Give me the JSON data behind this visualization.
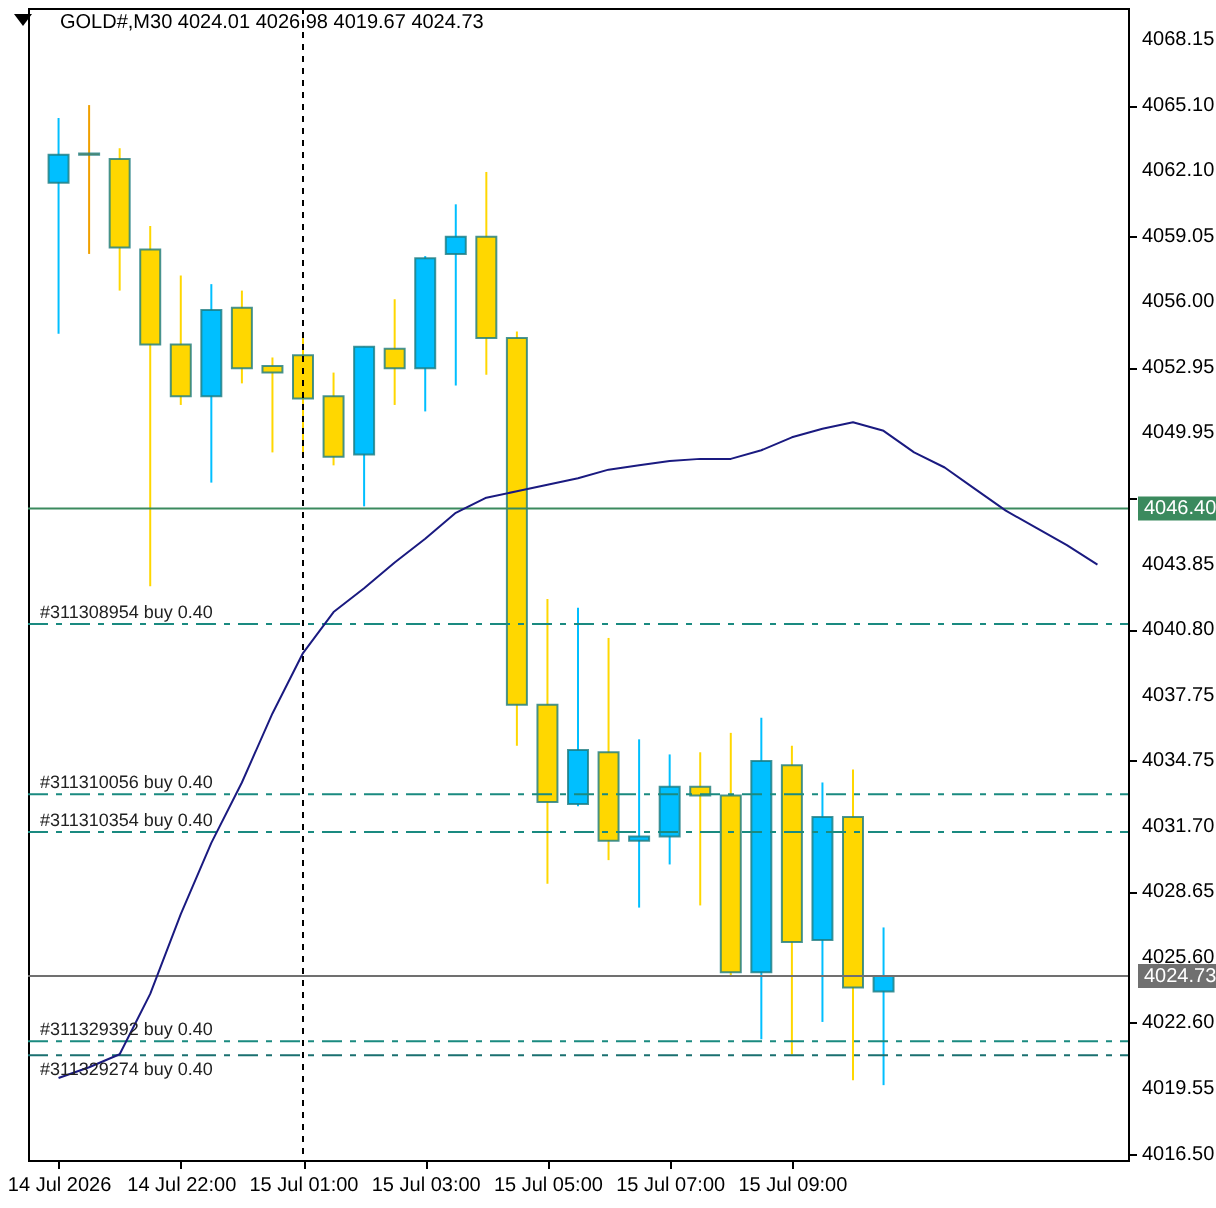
{
  "chart_data": {
    "type": "candlestick",
    "title": "GOLD#,M30 4024.01 4026.98 4019.67 4024.73",
    "categories": [
      "14 Jul 2026",
      null,
      null,
      null,
      "14 Jul 22:00",
      null,
      null,
      null,
      "15 Jul 01:00",
      null,
      null,
      null,
      "15 Jul 03:00",
      null,
      null,
      null,
      "15 Jul 05:00",
      null,
      null,
      null,
      "15 Jul 07:00",
      null,
      null,
      null,
      "15 Jul 09:00",
      null,
      null,
      null,
      null,
      null,
      null,
      null,
      null,
      null,
      null
    ],
    "ohlc": [
      [
        4061.5,
        4064.5,
        4054.5,
        4062.8
      ],
      [
        4062.85,
        4065.1,
        4058.2,
        4062.8
      ],
      [
        4062.6,
        4063.1,
        4056.5,
        4058.5
      ],
      [
        4058.4,
        4059.5,
        4042.8,
        4054.0
      ],
      [
        4054.0,
        4057.2,
        4051.2,
        4051.6
      ],
      [
        4051.6,
        4056.8,
        4047.6,
        4055.6
      ],
      [
        4055.7,
        4056.5,
        4052.2,
        4052.9
      ],
      [
        4053.0,
        4053.4,
        4049.0,
        4052.7
      ],
      [
        4053.5,
        4054.4,
        4048.9,
        4051.5
      ],
      [
        4051.6,
        4052.7,
        4048.4,
        4048.8
      ],
      [
        4048.9,
        4053.9,
        4046.5,
        4053.9
      ],
      [
        4053.8,
        4056.1,
        4051.2,
        4052.9
      ],
      [
        4052.9,
        4058.1,
        4050.9,
        4058.0
      ],
      [
        4058.2,
        4060.5,
        4052.1,
        4059.0
      ],
      [
        4059.0,
        4062.0,
        4052.6,
        4054.3
      ],
      [
        4054.3,
        4054.6,
        4035.4,
        4037.3
      ],
      [
        4037.3,
        4042.2,
        4029.0,
        4032.8
      ],
      [
        4032.7,
        4041.8,
        4032.6,
        4035.2
      ],
      [
        4035.1,
        4040.4,
        4030.1,
        4031.0
      ],
      [
        4031.0,
        4035.7,
        4027.9,
        4031.2
      ],
      [
        4031.2,
        4035.0,
        4029.9,
        4033.5
      ],
      [
        4033.5,
        4035.1,
        4028.0,
        4033.1
      ],
      [
        4033.1,
        4036.0,
        4024.7,
        4024.9
      ],
      [
        4024.9,
        4036.7,
        4021.8,
        4034.7
      ],
      [
        4034.5,
        4035.4,
        4021.1,
        4026.3
      ],
      [
        4026.4,
        4033.7,
        4022.6,
        4032.1
      ],
      [
        4032.1,
        4034.3,
        4019.9,
        4024.2
      ],
      [
        4024.01,
        4026.98,
        4019.67,
        4024.73
      ],
      null,
      null,
      null,
      null,
      null,
      null,
      null
    ],
    "colors": [
      "#00bfff",
      "#f0a000",
      "#ffd700",
      "#ffd700",
      "#ffd700",
      "#00bfff",
      "#ffd700",
      "#ffd700",
      "#ffd700",
      "#ffd700",
      "#00bfff",
      "#ffd700",
      "#00bfff",
      "#00bfff",
      "#ffd700",
      "#ffd700",
      "#ffd700",
      "#00bfff",
      "#ffd700",
      "#00bfff",
      "#00bfff",
      "#ffd700",
      "#ffd700",
      "#00bfff",
      "#ffd700",
      "#00bfff",
      "#ffd700",
      "#00bfff",
      null,
      null,
      null,
      null,
      null,
      null,
      null
    ],
    "series": [
      {
        "type": "line",
        "color": "#1a1a80",
        "values": [
          4020.0,
          4020.5,
          4021.1,
          4023.9,
          4027.6,
          4030.9,
          4033.7,
          4036.9,
          4039.7,
          4041.6,
          4042.7,
          4043.9,
          4045.0,
          4046.2,
          4046.9,
          4047.2,
          4047.5,
          4047.8,
          4048.2,
          4048.4,
          4048.6,
          4048.7,
          4048.7,
          4049.1,
          4049.7,
          4050.1,
          4050.4,
          4050.0,
          4049.0,
          4048.3,
          4047.3,
          4046.3,
          4045.5,
          4044.7,
          4043.8
        ]
      }
    ],
    "ylim": [
      4016.2,
      4069.6
    ],
    "yticks": [
      4068.15,
      {
        "value": 4065.1,
        "label": "4065.10"
      },
      {
        "value": 4062.1,
        "label": "4062.10"
      },
      4059.05,
      {
        "value": 4056,
        "label": "4056.00"
      },
      4052.95,
      4049.95,
      {
        "value": 4046.9,
        "label": null
      },
      4043.85,
      {
        "value": 4040.8,
        "label": "4040.80"
      },
      4037.75,
      4034.75,
      {
        "value": 4031.7,
        "label": "4031.70"
      },
      4028.65,
      {
        "value": 4025.6,
        "label": "4025.60"
      },
      {
        "value": 4022.6,
        "label": "4022.60"
      },
      4019.55,
      {
        "value": 4016.5,
        "label": "4016.50"
      }
    ],
    "ref_lines": [
      {
        "axis": "y",
        "value": 4046.4,
        "label": "4046.40",
        "color": "#3b8a5e",
        "line_style": "solid"
      },
      {
        "axis": "y",
        "value": 4024.73,
        "label": "4024.73",
        "color": "#707070",
        "line_style": "solid"
      },
      {
        "axis": "y",
        "value": 4041.05,
        "label": "#311308954 buy 0.40",
        "color": "#1a8a80",
        "line_style": "dashed"
      },
      {
        "axis": "y",
        "value": 4033.15,
        "label": "#311310056 buy 0.40",
        "color": "#1a8a80",
        "line_style": "dashed"
      },
      {
        "axis": "y",
        "value": 4031.4,
        "label": "#311310354 buy 0.40",
        "color": "#1a8a80",
        "line_style": "dashed"
      },
      {
        "axis": "y",
        "value": 4021.7,
        "label": "#311329392 buy 0.40",
        "color": "#1a8a80",
        "line_style": "dashed"
      },
      {
        "axis": "y",
        "value": 4021.05,
        "label": "#311329274 buy 0.40",
        "color": "#1a7070",
        "line_style": "dashed"
      },
      {
        "axis": "x",
        "value": "15 Jul 01:00",
        "color": "#000000",
        "line_style": "dotted"
      }
    ]
  }
}
